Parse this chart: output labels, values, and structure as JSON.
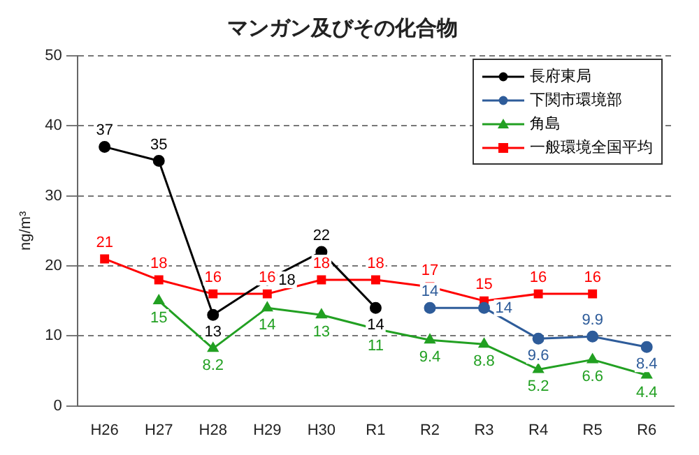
{
  "chart_data": {
    "type": "line",
    "title": "マンガン及びその化合物",
    "ylabel": "ng/m³",
    "categories": [
      "H26",
      "H27",
      "H28",
      "H29",
      "H30",
      "R1",
      "R2",
      "R3",
      "R4",
      "R5",
      "R6"
    ],
    "series": [
      {
        "name": "長府東局",
        "color": "#000000",
        "marker": "circle",
        "values": [
          37,
          35,
          13,
          18,
          22,
          14,
          null,
          null,
          null,
          null,
          null
        ]
      },
      {
        "name": "下関市環境部",
        "color": "#2e5c9a",
        "marker": "circle",
        "values": [
          null,
          null,
          null,
          null,
          null,
          null,
          14,
          14,
          9.6,
          9.9,
          8.4
        ]
      },
      {
        "name": "角島",
        "color": "#22a022",
        "marker": "triangle",
        "values": [
          null,
          15,
          8.2,
          14,
          13,
          11,
          9.4,
          8.8,
          5.2,
          6.6,
          4.4
        ]
      },
      {
        "name": "一般環境全国平均",
        "color": "#ff0000",
        "marker": "square",
        "values": [
          21,
          18,
          16,
          16,
          18,
          18,
          17,
          15,
          16,
          16,
          null
        ]
      }
    ],
    "ylim": [
      0,
      50
    ],
    "yticks": [
      0,
      10,
      20,
      30,
      40,
      50
    ],
    "grid": "y",
    "legend": "top right",
    "data_labels": true,
    "line_style": "solid"
  }
}
